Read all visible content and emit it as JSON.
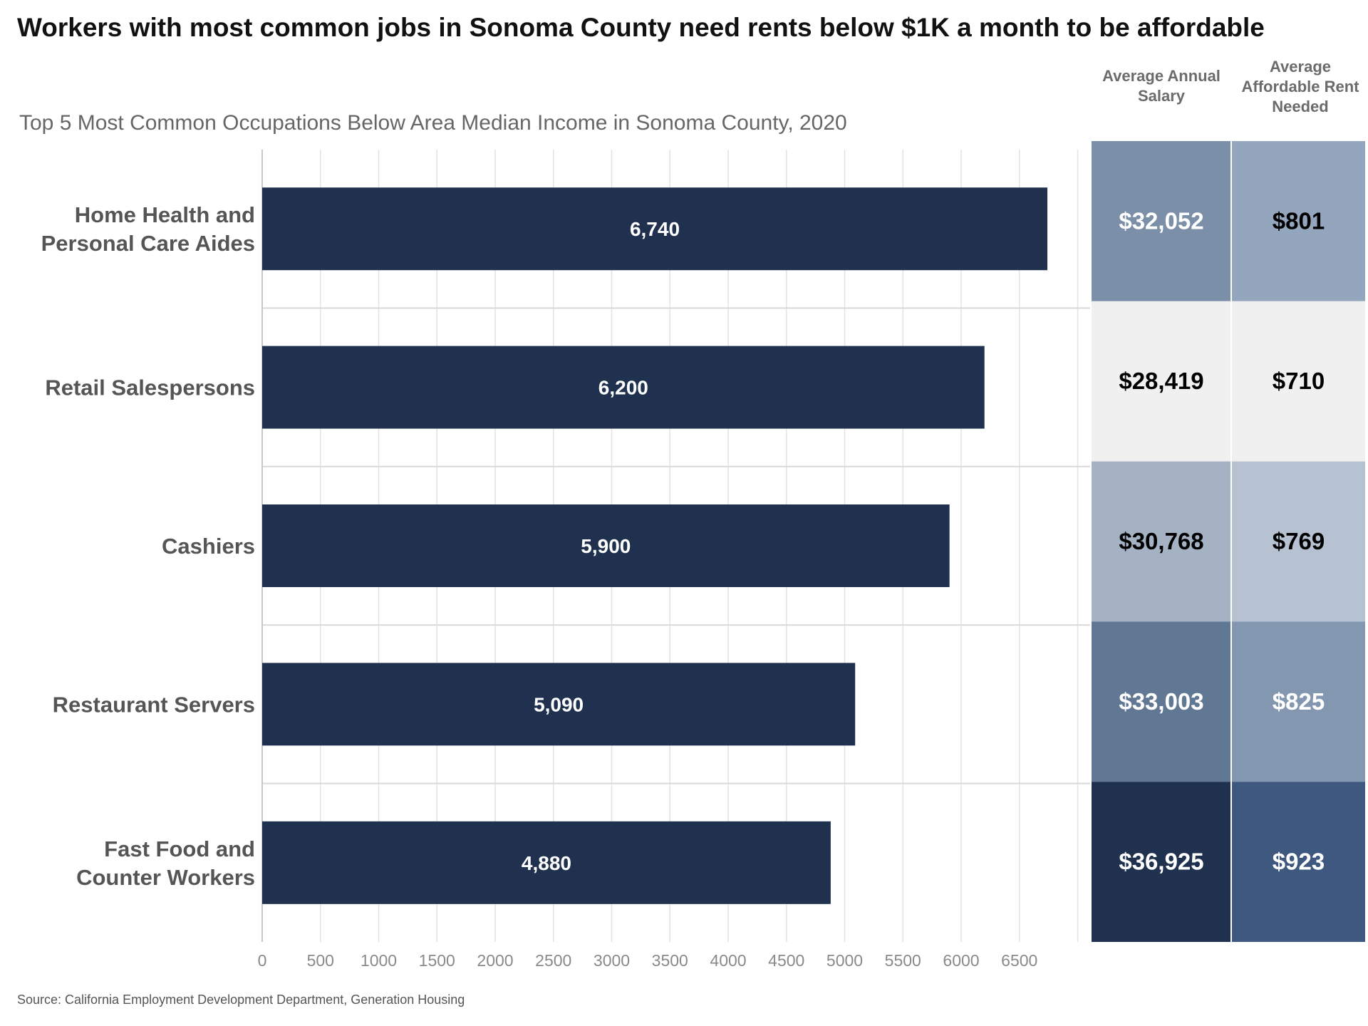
{
  "title": "Workers with most common jobs in Sonoma County need rents below $1K a month to be affordable",
  "subtitle": "Top 5 Most Common Occupations Below Area Median Income in Sonoma County, 2020",
  "table_headers": {
    "salary": "Average Annual Salary",
    "rent": "Average Affordable Rent Needed"
  },
  "source": "Source: California Employment Development Department, Generation Housing",
  "chart_data": {
    "type": "bar",
    "orientation": "horizontal",
    "categories": [
      [
        "Home Health and",
        "Personal Care Aides"
      ],
      [
        "Retail Salespersons"
      ],
      [
        "Cashiers"
      ],
      [
        "Restaurant Servers"
      ],
      [
        "Fast Food and",
        "Counter Workers"
      ]
    ],
    "values": [
      6740,
      6200,
      5900,
      5090,
      4880
    ],
    "value_labels": [
      "6,740",
      "6,200",
      "5,900",
      "5,090",
      "4,880"
    ],
    "xlim": [
      0,
      7000
    ],
    "xticks": [
      0,
      500,
      1000,
      1500,
      2000,
      2500,
      3000,
      3500,
      4000,
      4500,
      5000,
      5500,
      6000,
      6500
    ],
    "grid": true,
    "bar_color": "#1f314f",
    "table": {
      "salary": [
        "$32,052",
        "$28,419",
        "$30,768",
        "$33,003",
        "$36,925"
      ],
      "rent": [
        "$801",
        "$710",
        "$769",
        "$825",
        "$923"
      ],
      "salary_colors": [
        "#7c8fa8",
        "#f0f0f0",
        "#a4b2c3",
        "#617894",
        "#1f314f"
      ],
      "rent_colors": [
        "#94a6bd",
        "#f0f0f0",
        "#b6c2d1",
        "#8397b1",
        "#3e5880"
      ],
      "salary_text_colors": [
        "#ffffff",
        "#000000",
        "#000000",
        "#ffffff",
        "#ffffff"
      ],
      "rent_text_colors": [
        "#000000",
        "#000000",
        "#000000",
        "#ffffff",
        "#ffffff"
      ]
    }
  }
}
